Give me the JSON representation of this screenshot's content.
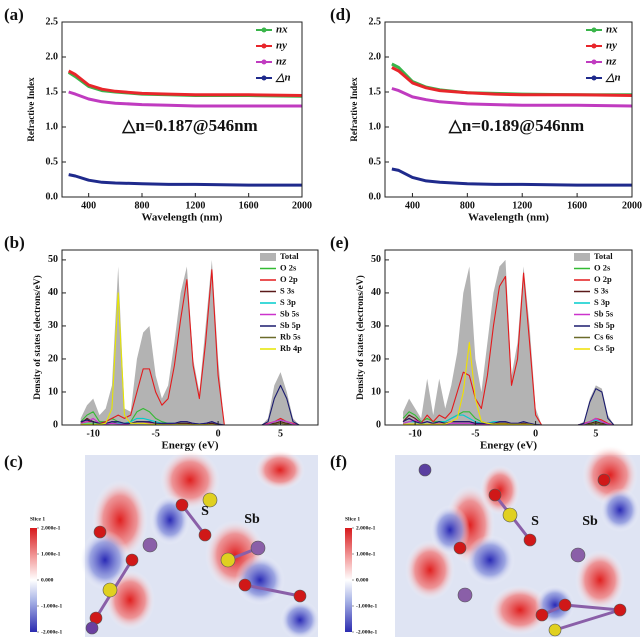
{
  "chart_data": [
    {
      "type": "line",
      "label": "(a)",
      "x_label": "Wavelength (nm)",
      "y_label": "Refractive Index",
      "annotation": "△n=0.187@546nm",
      "x": [
        250,
        300,
        400,
        500,
        600,
        800,
        1000,
        1200,
        1600,
        2000
      ],
      "xlim": [
        200,
        2000
      ],
      "xticks": [
        400,
        800,
        1200,
        1600,
        2000
      ],
      "ylim": [
        0,
        2.5
      ],
      "yticks": [
        {
          "value": 0,
          "label": "0.0"
        },
        0.5,
        {
          "value": 1,
          "label": "1.0"
        },
        1.5,
        {
          "value": 2,
          "label": "2.0"
        },
        2.5
      ],
      "series": [
        {
          "name": "nx",
          "color": "#39b54a",
          "values": [
            1.78,
            1.72,
            1.58,
            1.52,
            1.5,
            1.47,
            1.46,
            1.45,
            1.45,
            1.44
          ]
        },
        {
          "name": "ny",
          "color": "#e8262b",
          "values": [
            1.8,
            1.75,
            1.6,
            1.54,
            1.51,
            1.48,
            1.47,
            1.46,
            1.46,
            1.45
          ]
        },
        {
          "name": "nz",
          "color": "#c03bc0",
          "values": [
            1.5,
            1.47,
            1.4,
            1.36,
            1.34,
            1.32,
            1.31,
            1.3,
            1.3,
            1.3
          ]
        },
        {
          "name": "△n",
          "color": "#1f2a8c",
          "values": [
            0.32,
            0.3,
            0.24,
            0.21,
            0.2,
            0.19,
            0.18,
            0.18,
            0.17,
            0.17
          ]
        }
      ]
    },
    {
      "type": "line",
      "label": "(d)",
      "x_label": "Wavelength (nm)",
      "y_label": "Refractive Index",
      "annotation": "△n=0.189@546nm",
      "x": [
        250,
        300,
        400,
        500,
        600,
        800,
        1000,
        1200,
        1600,
        2000
      ],
      "xlim": [
        200,
        2000
      ],
      "xticks": [
        400,
        800,
        1200,
        1600,
        2000
      ],
      "ylim": [
        0,
        2.5
      ],
      "yticks": [
        {
          "value": 0,
          "label": "0.0"
        },
        0.5,
        {
          "value": 1,
          "label": "1.0"
        },
        1.5,
        {
          "value": 2,
          "label": "2.0"
        },
        2.5
      ],
      "series": [
        {
          "name": "nx",
          "color": "#39b54a",
          "values": [
            1.9,
            1.85,
            1.65,
            1.57,
            1.53,
            1.49,
            1.48,
            1.47,
            1.46,
            1.46
          ]
        },
        {
          "name": "ny",
          "color": "#e8262b",
          "values": [
            1.85,
            1.8,
            1.63,
            1.56,
            1.52,
            1.49,
            1.47,
            1.46,
            1.46,
            1.45
          ]
        },
        {
          "name": "nz",
          "color": "#c03bc0",
          "values": [
            1.55,
            1.52,
            1.43,
            1.39,
            1.36,
            1.33,
            1.32,
            1.31,
            1.31,
            1.3
          ]
        },
        {
          "name": "△n",
          "color": "#1f2a8c",
          "values": [
            0.4,
            0.38,
            0.28,
            0.23,
            0.21,
            0.19,
            0.18,
            0.18,
            0.17,
            0.17
          ]
        }
      ]
    },
    {
      "type": "line",
      "label": "(b)",
      "x_label": "Energy (eV)",
      "y_label": "Density of states (electrons/eV)",
      "x": [
        -11,
        -10.5,
        -10,
        -9.5,
        -9,
        -8.5,
        -8,
        -7.5,
        -7,
        -6.5,
        -6,
        -5.5,
        -5,
        -4.5,
        -4,
        -3.5,
        -3,
        -2.5,
        -2,
        -1.5,
        -1,
        -0.5,
        0,
        0.5,
        1,
        1.5,
        2,
        2.5,
        3,
        3.5,
        4,
        4.5,
        5,
        5.5,
        6,
        6.5
      ],
      "xlim": [
        -12.5,
        8
      ],
      "xticks": [
        -10,
        -5,
        0,
        5
      ],
      "ylim": [
        0,
        53
      ],
      "yticks": [
        0,
        10,
        20,
        30,
        40,
        50
      ],
      "series": [
        {
          "name": "Total",
          "color": "#b3b3b3",
          "fill": true,
          "values": [
            2,
            6,
            8,
            3,
            5,
            12,
            48,
            5,
            4,
            20,
            28,
            30,
            15,
            8,
            12,
            25,
            40,
            48,
            20,
            10,
            30,
            50,
            20,
            0,
            0,
            0,
            0,
            0,
            0,
            0,
            2,
            12,
            16,
            10,
            2,
            0
          ]
        },
        {
          "name": "O 2s",
          "color": "#33bb33",
          "values": [
            1,
            3,
            4,
            1,
            1,
            2,
            1,
            0.5,
            1,
            4,
            5,
            4,
            2,
            1,
            0.5,
            0.5,
            0.5,
            0.5,
            0.3,
            0.2,
            0.3,
            0.5,
            0.2,
            0,
            0,
            0,
            0,
            0,
            0,
            0,
            0.2,
            0.5,
            1,
            0.5,
            0.2,
            0
          ]
        },
        {
          "name": "O 2p",
          "color": "#e31a1c",
          "values": [
            0.5,
            1,
            1,
            0.5,
            1,
            2,
            3,
            2,
            3,
            10,
            17,
            17,
            10,
            6,
            8,
            18,
            32,
            44,
            18,
            8,
            25,
            47,
            15,
            0,
            0,
            0,
            0,
            0,
            0,
            0,
            0.5,
            1,
            2,
            1,
            0.5,
            0
          ]
        },
        {
          "name": "S 3s",
          "color": "#5a1a1a",
          "values": [
            0.5,
            2,
            1,
            0.3,
            0.3,
            1,
            0.5,
            0.3,
            0.5,
            1,
            1,
            0.8,
            0.5,
            0.3,
            0.3,
            0.5,
            0.5,
            0.5,
            0.3,
            0.2,
            0.3,
            0.5,
            0.2,
            0,
            0,
            0,
            0,
            0,
            0,
            0,
            0.2,
            0.5,
            1,
            0.5,
            0.2,
            0
          ]
        },
        {
          "name": "S 3p",
          "color": "#00cccc",
          "values": [
            0.3,
            0.5,
            0.5,
            0.2,
            0.3,
            0.5,
            0.5,
            0.5,
            1,
            2,
            2,
            1.5,
            1,
            0.5,
            0.5,
            0.5,
            1,
            1,
            0.5,
            0.3,
            0.5,
            1,
            0.3,
            0,
            0,
            0,
            0,
            0,
            0,
            0,
            0.2,
            1,
            1.5,
            1,
            0.2,
            0
          ]
        },
        {
          "name": "Sb 5s",
          "color": "#cc33cc",
          "values": [
            0.5,
            1,
            2,
            0.5,
            0.3,
            0.5,
            0.3,
            0.2,
            0.5,
            0.5,
            0.5,
            0.5,
            0.3,
            0.2,
            0.3,
            0.5,
            1,
            1,
            0.5,
            0.3,
            0.5,
            1,
            0.3,
            0,
            0,
            0,
            0,
            0,
            0,
            0,
            0.3,
            1,
            1.5,
            1,
            0.3,
            0
          ]
        },
        {
          "name": "Sb 5p",
          "color": "#1a1a6e",
          "values": [
            1,
            1.5,
            1,
            0.5,
            0.5,
            1,
            1,
            0.5,
            0.5,
            1,
            1,
            1,
            0.5,
            0.5,
            0.5,
            0.5,
            1,
            1,
            0.5,
            0.3,
            0.5,
            1,
            0.3,
            0,
            0,
            0,
            0,
            0,
            0,
            0,
            1,
            8,
            12,
            8,
            1,
            0
          ]
        },
        {
          "name": "Rb 5s",
          "color": "#6b6b2a",
          "values": [
            0,
            0,
            0,
            0,
            0,
            0,
            0,
            0,
            0,
            0,
            0,
            0,
            0,
            0,
            0,
            0,
            0,
            0,
            0,
            0,
            0,
            0,
            0,
            0,
            0,
            0,
            0,
            0,
            0,
            0,
            0,
            0.2,
            0.5,
            0.2,
            0,
            0
          ]
        },
        {
          "name": "Rb 4p",
          "color": "#e6e600",
          "values": [
            0.2,
            0.3,
            0.3,
            0.2,
            0.5,
            5,
            40,
            3,
            0.5,
            0.5,
            0.5,
            0.3,
            0.2,
            0.1,
            0.1,
            0.1,
            0.1,
            0.1,
            0.1,
            0.1,
            0.1,
            0.1,
            0,
            0,
            0,
            0,
            0,
            0,
            0,
            0,
            0,
            0,
            0,
            0,
            0,
            0
          ]
        }
      ]
    },
    {
      "type": "line",
      "label": "(e)",
      "x_label": "Energy (eV)",
      "y_label": "Density of states (electrons/eV)",
      "x": [
        -11,
        -10.5,
        -10,
        -9.5,
        -9,
        -8.5,
        -8,
        -7.5,
        -7,
        -6.5,
        -6,
        -5.5,
        -5,
        -4.5,
        -4,
        -3.5,
        -3,
        -2.5,
        -2,
        -1.5,
        -1,
        -0.5,
        0,
        0.5,
        1,
        1.5,
        2,
        2.5,
        3,
        3.5,
        4,
        4.5,
        5,
        5.5,
        6,
        6.5
      ],
      "xlim": [
        -12.5,
        8
      ],
      "xticks": [
        -10,
        -5,
        0,
        5
      ],
      "ylim": [
        0,
        53
      ],
      "yticks": [
        0,
        10,
        20,
        30,
        40,
        50
      ],
      "series": [
        {
          "name": "Total",
          "color": "#b3b3b3",
          "fill": true,
          "values": [
            4,
            8,
            5,
            2,
            14,
            3,
            14,
            5,
            12,
            22,
            40,
            48,
            20,
            10,
            25,
            40,
            48,
            50,
            15,
            25,
            48,
            30,
            5,
            0,
            0,
            0,
            0,
            0,
            0,
            0,
            1,
            8,
            12,
            11,
            3,
            0
          ]
        },
        {
          "name": "O 2s",
          "color": "#33bb33",
          "values": [
            2,
            4,
            3,
            1,
            2,
            1,
            1,
            1,
            2,
            3,
            4,
            4,
            2,
            1,
            0.5,
            0.5,
            0.5,
            0.5,
            0.3,
            0.3,
            0.5,
            0.3,
            0.1,
            0,
            0,
            0,
            0,
            0,
            0,
            0,
            0.2,
            0.5,
            1,
            0.5,
            0.2,
            0
          ]
        },
        {
          "name": "O 2p",
          "color": "#e31a1c",
          "values": [
            1,
            2,
            1,
            0.5,
            3,
            1,
            3,
            2,
            4,
            10,
            16,
            15,
            8,
            5,
            15,
            30,
            42,
            45,
            12,
            20,
            46,
            25,
            3,
            0,
            0,
            0,
            0,
            0,
            0,
            0,
            0.5,
            1,
            2,
            1.5,
            0.5,
            0
          ]
        },
        {
          "name": "S 3s",
          "color": "#5a1a1a",
          "values": [
            1,
            3,
            2,
            0.5,
            1,
            0.5,
            1,
            0.5,
            1,
            1,
            1,
            1,
            0.5,
            0.3,
            0.3,
            0.5,
            0.5,
            0.5,
            0.3,
            0.3,
            0.5,
            0.3,
            0.1,
            0,
            0,
            0,
            0,
            0,
            0,
            0,
            0.2,
            0.5,
            1,
            0.5,
            0.2,
            0
          ]
        },
        {
          "name": "S 3p",
          "color": "#00cccc",
          "values": [
            0.5,
            1,
            1,
            0.3,
            1,
            0.5,
            1,
            1,
            2,
            3,
            3,
            2,
            1,
            0.5,
            0.5,
            1,
            1,
            1,
            0.5,
            0.5,
            1,
            0.5,
            0.1,
            0,
            0,
            0,
            0,
            0,
            0,
            0,
            0.2,
            1,
            1.5,
            1,
            0.2,
            0
          ]
        },
        {
          "name": "Sb 5s",
          "color": "#cc33cc",
          "values": [
            0.5,
            1,
            1.5,
            0.5,
            1,
            0.3,
            0.5,
            0.3,
            0.5,
            0.5,
            0.5,
            0.5,
            0.3,
            0.2,
            0.3,
            0.5,
            1,
            1,
            0.5,
            0.5,
            1,
            0.5,
            0.1,
            0,
            0,
            0,
            0,
            0,
            0,
            0,
            0.3,
            1,
            2,
            1,
            0.3,
            0
          ]
        },
        {
          "name": "Sb 5p",
          "color": "#1a1a6e",
          "values": [
            1,
            2,
            1,
            0.5,
            1,
            0.5,
            1,
            0.5,
            1,
            1,
            1,
            1,
            0.5,
            0.5,
            0.5,
            0.5,
            1,
            1,
            0.5,
            0.5,
            1,
            0.5,
            0.1,
            0,
            0,
            0,
            0,
            0,
            0,
            0,
            0.5,
            7,
            11,
            10,
            2,
            0
          ]
        },
        {
          "name": "Cs 6s",
          "color": "#6b6b2a",
          "values": [
            0,
            0,
            0,
            0,
            0,
            0,
            0,
            0,
            0,
            0,
            0,
            0,
            0,
            0,
            0,
            0,
            0,
            0,
            0,
            0,
            0,
            0,
            0,
            0,
            0,
            0,
            0,
            0,
            0,
            0,
            0,
            0.2,
            0.5,
            0.2,
            0,
            0
          ]
        },
        {
          "name": "Cs 5p",
          "color": "#f0e000",
          "values": [
            0.2,
            0.3,
            0.3,
            0.2,
            0.3,
            0.2,
            0.3,
            0.3,
            1,
            2,
            10,
            25,
            8,
            1,
            0.5,
            0.3,
            0.3,
            0.3,
            0.2,
            0.2,
            0.2,
            0.2,
            0,
            0,
            0,
            0,
            0,
            0,
            0,
            0,
            0,
            0,
            0,
            0,
            0,
            0
          ]
        }
      ]
    }
  ],
  "maps": [
    {
      "label": "(c)",
      "colorbar_title": "Slice 1",
      "atom_labels": [
        "S",
        "Sb"
      ],
      "colorbar_ticks": [
        {
          "value": 0.2,
          "label": "2.000e-1"
        },
        {
          "value": 0.1,
          "label": "1.000e-1"
        },
        {
          "value": 0,
          "label": "0.000"
        },
        {
          "value": -0.1,
          "label": "-1.000e-1"
        },
        {
          "value": -0.2,
          "label": "-2.000e-1"
        }
      ]
    },
    {
      "label": "(f)",
      "colorbar_title": "Slice 1",
      "atom_labels": [
        "S",
        "Sb"
      ],
      "colorbar_ticks": [
        {
          "value": 0.2,
          "label": "2.000e-1"
        },
        {
          "value": 0.1,
          "label": "1.000e-1"
        },
        {
          "value": 0,
          "label": "0.000"
        },
        {
          "value": -0.1,
          "label": "-1.000e-1"
        },
        {
          "value": -0.2,
          "label": "-2.000e-1"
        }
      ]
    }
  ]
}
